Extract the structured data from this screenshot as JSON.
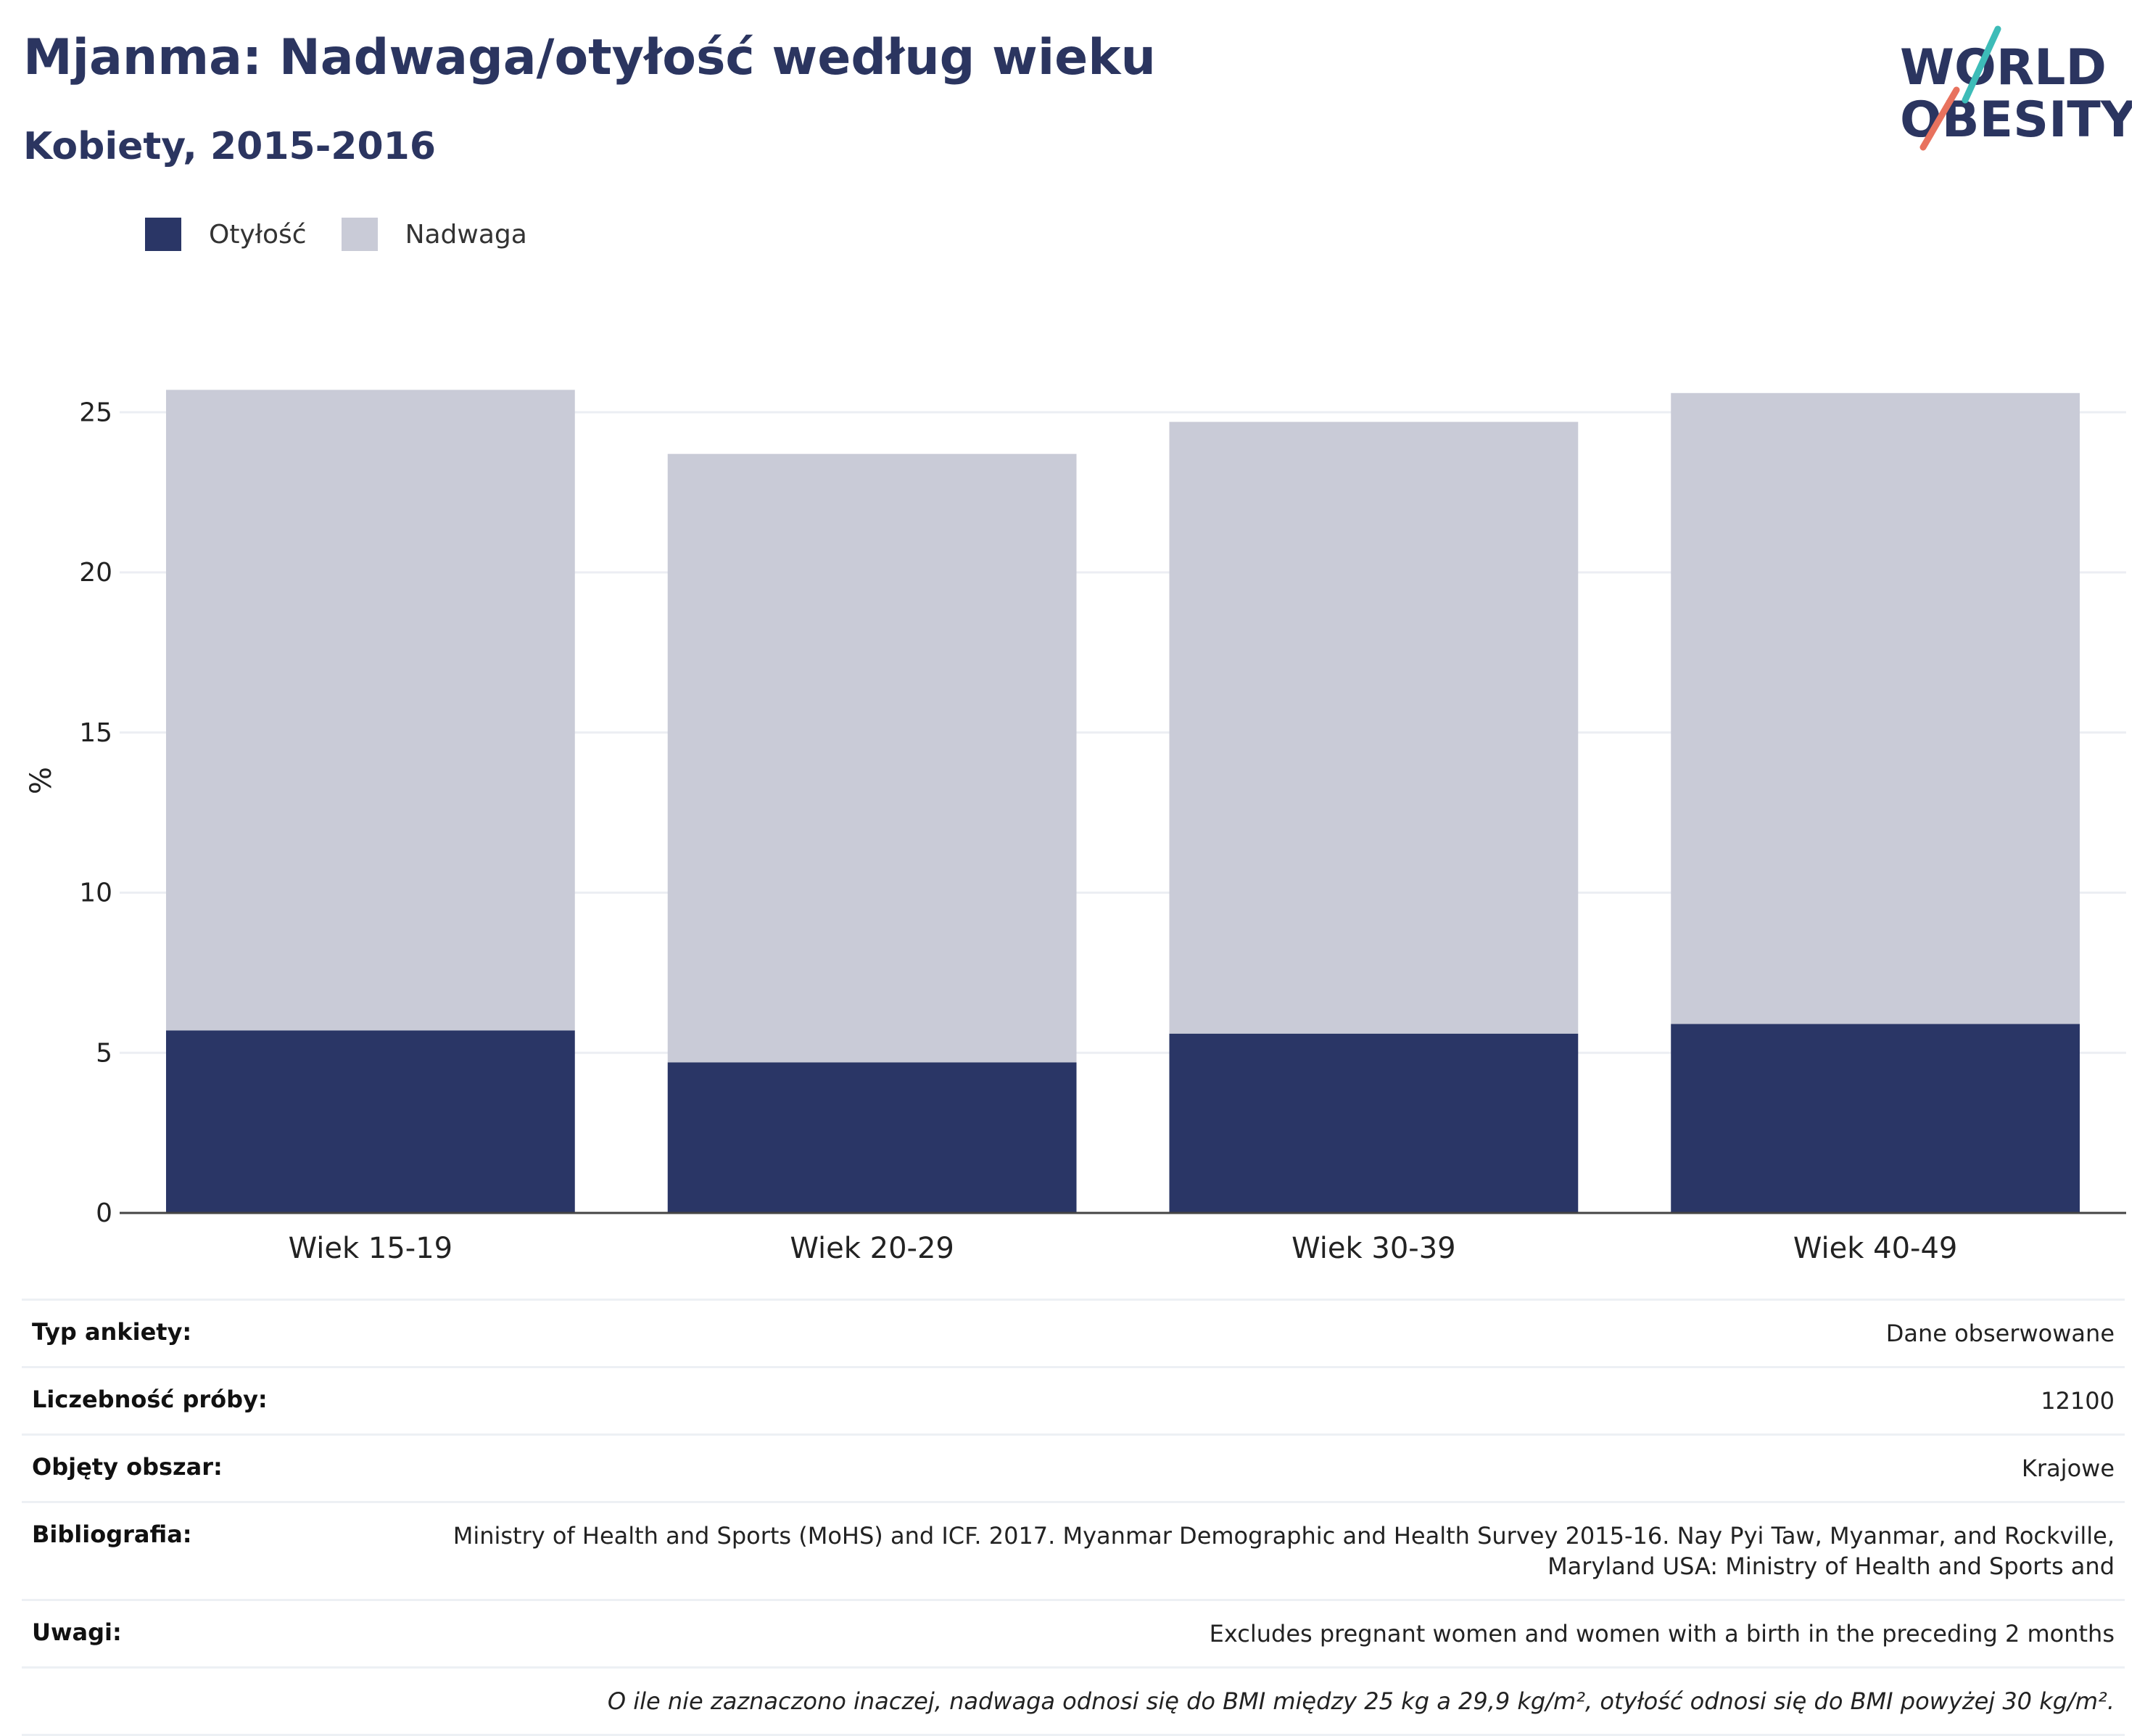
{
  "header": {
    "title": "Mjanma: Nadwaga/otyłość według wieku",
    "subtitle": "Kobiety, 2015-2016"
  },
  "logo": {
    "line1": "WORLD",
    "line2": "OBESITY"
  },
  "colors": {
    "obesity": "#2a3666",
    "overweight": "#c9cbd7",
    "title": "#2b3560",
    "grid": "#eceef3"
  },
  "chart_data": {
    "type": "bar",
    "stacked": true,
    "categories": [
      "Wiek 15-19",
      "Wiek 20-29",
      "Wiek 30-39",
      "Wiek 40-49"
    ],
    "series": [
      {
        "name": "Otyłość",
        "values": [
          5.7,
          4.7,
          5.6,
          5.9
        ]
      },
      {
        "name": "Nadwaga",
        "values": [
          20.0,
          19.0,
          19.1,
          19.7
        ]
      }
    ],
    "ylabel": "%",
    "ylim": [
      0,
      27
    ],
    "yticks": [
      0,
      5,
      10,
      15,
      20,
      25
    ],
    "legend_position": "top-left",
    "grid": true
  },
  "info": {
    "rows": [
      {
        "label": "Typ ankiety:",
        "value": "Dane obserwowane"
      },
      {
        "label": "Liczebność próby:",
        "value": "12100"
      },
      {
        "label": "Objęty obszar:",
        "value": "Krajowe"
      },
      {
        "label": "Bibliografia:",
        "value": "Ministry of Health and Sports (MoHS) and ICF. 2017. Myanmar Demographic and Health Survey 2015-16. Nay Pyi Taw, Myanmar, and Rockville, Maryland USA: Ministry of Health and Sports and"
      },
      {
        "label": "Uwagi:",
        "value": "Excludes pregnant women and women with a birth in the preceding 2 months"
      }
    ],
    "footnote": "O ile nie zaznaczono inaczej, nadwaga odnosi się do BMI między 25 kg a 29,9 kg/m², otyłość odnosi się do BMI powyżej 30 kg/m²."
  }
}
